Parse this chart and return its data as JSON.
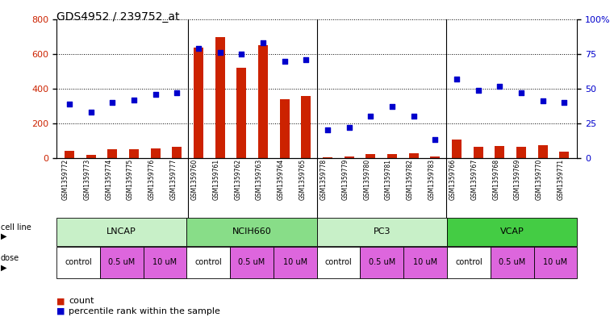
{
  "title": "GDS4952 / 239752_at",
  "samples": [
    "GSM1359772",
    "GSM1359773",
    "GSM1359774",
    "GSM1359775",
    "GSM1359776",
    "GSM1359777",
    "GSM1359760",
    "GSM1359761",
    "GSM1359762",
    "GSM1359763",
    "GSM1359764",
    "GSM1359765",
    "GSM1359778",
    "GSM1359779",
    "GSM1359780",
    "GSM1359781",
    "GSM1359782",
    "GSM1359783",
    "GSM1359766",
    "GSM1359767",
    "GSM1359768",
    "GSM1359769",
    "GSM1359770",
    "GSM1359771"
  ],
  "counts": [
    40,
    18,
    48,
    48,
    55,
    62,
    640,
    700,
    520,
    650,
    340,
    360,
    5,
    8,
    22,
    22,
    28,
    8,
    105,
    65,
    70,
    65,
    72,
    38
  ],
  "percentile": [
    39,
    33,
    40,
    42,
    46,
    47,
    79,
    76,
    75,
    83,
    70,
    71,
    20,
    22,
    30,
    37,
    30,
    13,
    57,
    49,
    52,
    47,
    41,
    40
  ],
  "cell_lines": [
    {
      "name": "LNCAP",
      "start": 0,
      "end": 6,
      "color": "#c8f0c8"
    },
    {
      "name": "NCIH660",
      "start": 6,
      "end": 12,
      "color": "#88dd88"
    },
    {
      "name": "PC3",
      "start": 12,
      "end": 18,
      "color": "#c8f0c8"
    },
    {
      "name": "VCAP",
      "start": 18,
      "end": 24,
      "color": "#44cc44"
    }
  ],
  "dose_pattern": [
    "control",
    "0.5 uM",
    "10 uM"
  ],
  "dose_colors": [
    "white",
    "#dd66dd",
    "#dd66dd"
  ],
  "bar_color": "#cc2200",
  "scatter_color": "#0000cc",
  "ylim_left": [
    0,
    800
  ],
  "ylim_right": [
    0,
    100
  ],
  "yticks_left": [
    0,
    200,
    400,
    600,
    800
  ],
  "yticks_right": [
    0,
    25,
    50,
    75,
    100
  ],
  "separators": [
    5.5,
    11.5,
    17.5
  ]
}
